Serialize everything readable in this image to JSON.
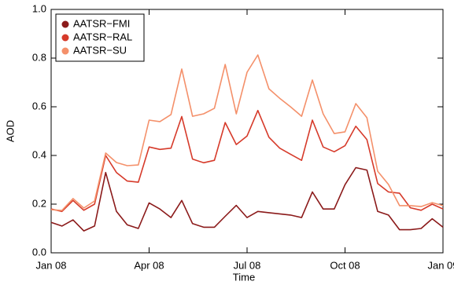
{
  "chart_data": {
    "type": "line",
    "x_label": "Time",
    "y_label": "AOD",
    "x": [
      0,
      0.33,
      0.67,
      1,
      1.33,
      1.67,
      2,
      2.33,
      2.67,
      3,
      3.33,
      3.67,
      4,
      4.33,
      4.67,
      5,
      5.33,
      5.67,
      6,
      6.33,
      6.67,
      7,
      7.33,
      7.67,
      8,
      8.33,
      8.67,
      9,
      9.33,
      9.67,
      10,
      10.33,
      10.67,
      11,
      11.33,
      11.67,
      12
    ],
    "series": [
      {
        "name": "AATSR−FMI",
        "color": "#8b1a1a",
        "values": [
          0.125,
          0.11,
          0.135,
          0.09,
          0.11,
          0.33,
          0.17,
          0.115,
          0.1,
          0.205,
          0.18,
          0.145,
          0.215,
          0.12,
          0.105,
          0.105,
          0.15,
          0.195,
          0.145,
          0.17,
          0.165,
          0.16,
          0.155,
          0.145,
          0.25,
          0.18,
          0.18,
          0.28,
          0.35,
          0.34,
          0.17,
          0.155,
          0.095,
          0.095,
          0.1,
          0.14,
          0.105
        ]
      },
      {
        "name": "AATSR−RAL",
        "color": "#d63a2a",
        "values": [
          0.18,
          0.17,
          0.215,
          0.175,
          0.2,
          0.4,
          0.33,
          0.295,
          0.29,
          0.435,
          0.425,
          0.43,
          0.56,
          0.385,
          0.37,
          0.38,
          0.535,
          0.445,
          0.48,
          0.585,
          0.475,
          0.43,
          0.405,
          0.38,
          0.545,
          0.435,
          0.415,
          0.44,
          0.52,
          0.465,
          0.285,
          0.25,
          0.245,
          0.185,
          0.175,
          0.2,
          0.18
        ]
      },
      {
        "name": "AATSR−SU",
        "color": "#f4906a",
        "values": [
          0.177,
          0.174,
          0.223,
          0.184,
          0.213,
          0.41,
          0.371,
          0.358,
          0.361,
          0.545,
          0.539,
          0.568,
          0.755,
          0.561,
          0.571,
          0.594,
          0.774,
          0.571,
          0.742,
          0.813,
          0.674,
          0.635,
          0.6,
          0.561,
          0.71,
          0.571,
          0.49,
          0.497,
          0.613,
          0.555,
          0.335,
          0.281,
          0.194,
          0.194,
          0.19,
          0.206,
          0.194
        ]
      }
    ],
    "xlim": [
      0,
      12
    ],
    "xticks": [
      {
        "value": 0,
        "label": "Jan 08"
      },
      {
        "value": 3,
        "label": "Apr 08"
      },
      {
        "value": 6,
        "label": "Jul 08"
      },
      {
        "value": 9,
        "label": "Oct 08"
      },
      {
        "value": 12,
        "label": "Jan 09"
      }
    ],
    "ylim": [
      0,
      1
    ],
    "yticks": [
      {
        "value": 0,
        "label": "0.0"
      },
      0.2,
      0.4,
      0.6,
      0.8,
      {
        "value": 1,
        "label": "1.0"
      }
    ],
    "legend": "upper left"
  }
}
